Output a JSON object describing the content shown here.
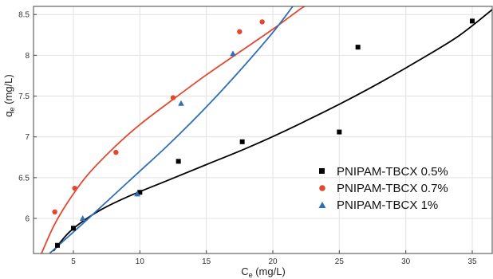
{
  "chart_data": {
    "type": "scatter",
    "title": "",
    "xlabel": "C",
    "xlabel_sub": "e",
    "xlabel_unit": " (mg/L)",
    "ylabel": "q",
    "ylabel_sub": "e",
    "ylabel_unit": " (mg/L)",
    "xlim": [
      2,
      36.5
    ],
    "ylim": [
      5.57,
      8.6
    ],
    "xticks": [
      5,
      10,
      15,
      20,
      25,
      30,
      35
    ],
    "yticks": [
      6,
      6.5,
      7,
      7.5,
      8,
      8.5
    ],
    "xtick_labels": [
      "5",
      "10",
      "15",
      "20",
      "25",
      "30",
      "35"
    ],
    "ytick_labels": [
      "6",
      "6.5",
      "7",
      "7.5",
      "8",
      "8.5"
    ],
    "grid": true,
    "legend_position": "lower-right",
    "series": [
      {
        "name": "PNIPAM-TBCX 0.5%",
        "marker": "square",
        "color": "#000000",
        "points": [
          [
            3.8,
            5.67
          ],
          [
            5.0,
            5.88
          ],
          [
            10.0,
            6.32
          ],
          [
            12.9,
            6.7
          ],
          [
            17.7,
            6.94
          ],
          [
            25.0,
            7.06
          ],
          [
            26.4,
            8.1
          ],
          [
            35.0,
            8.42
          ]
        ],
        "fit": [
          [
            3.5,
            5.6
          ],
          [
            4.5,
            5.8
          ],
          [
            5.5,
            5.94
          ],
          [
            7.0,
            6.1
          ],
          [
            9.0,
            6.26
          ],
          [
            12.0,
            6.46
          ],
          [
            15.0,
            6.66
          ],
          [
            18.0,
            6.86
          ],
          [
            21.0,
            7.08
          ],
          [
            25.0,
            7.4
          ],
          [
            28.0,
            7.66
          ],
          [
            31.0,
            7.94
          ],
          [
            34.0,
            8.24
          ],
          [
            36.5,
            8.56
          ]
        ]
      },
      {
        "name": "PNIPAM-TBCX 0.7%",
        "marker": "circle",
        "color": "#e4472f",
        "points": [
          [
            3.6,
            6.08
          ],
          [
            5.1,
            6.37
          ],
          [
            8.2,
            6.81
          ],
          [
            12.5,
            7.48
          ],
          [
            17.5,
            8.29
          ],
          [
            19.2,
            8.41
          ]
        ],
        "fit": [
          [
            2.6,
            5.57
          ],
          [
            3.5,
            5.9
          ],
          [
            4.5,
            6.18
          ],
          [
            6.0,
            6.52
          ],
          [
            8.0,
            6.86
          ],
          [
            10.0,
            7.15
          ],
          [
            12.5,
            7.46
          ],
          [
            15.0,
            7.76
          ],
          [
            17.5,
            8.04
          ],
          [
            20.0,
            8.32
          ],
          [
            22.0,
            8.56
          ],
          [
            22.4,
            8.6
          ]
        ]
      },
      {
        "name": "PNIPAM-TBCX 1%",
        "marker": "triangle",
        "color": "#2e6fb7",
        "points": [
          [
            5.7,
            6.0
          ],
          [
            9.8,
            6.3
          ],
          [
            13.1,
            7.41
          ],
          [
            17.0,
            8.02
          ]
        ],
        "fit": [
          [
            3.2,
            5.57
          ],
          [
            4.5,
            5.76
          ],
          [
            6.0,
            5.98
          ],
          [
            8.0,
            6.28
          ],
          [
            10.0,
            6.58
          ],
          [
            12.0,
            6.88
          ],
          [
            14.0,
            7.2
          ],
          [
            16.0,
            7.54
          ],
          [
            18.0,
            7.9
          ],
          [
            20.0,
            8.28
          ],
          [
            21.5,
            8.6
          ]
        ]
      }
    ]
  }
}
